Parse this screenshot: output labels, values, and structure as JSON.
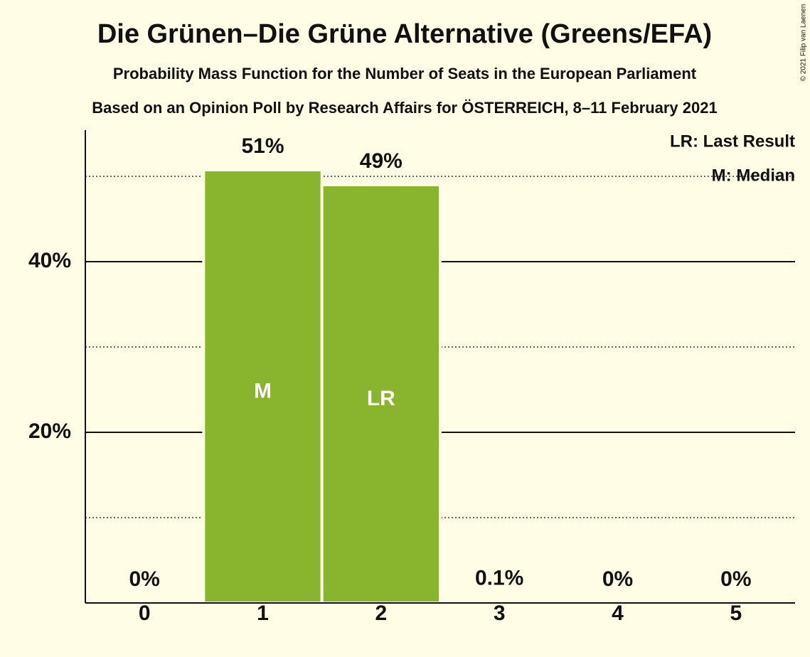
{
  "chart_data": {
    "type": "bar",
    "title": "Die Grünen–Die Grüne Alternative (Greens/EFA)",
    "subtitle": "Probability Mass Function for the Number of Seats in the European Parliament",
    "source_line": "Based on an Opinion Poll by Research Affairs for ÖSTERREICH, 8–11 February 2021",
    "copyright": "© 2021 Filip van Laenen",
    "categories": [
      "0",
      "1",
      "2",
      "3",
      "4",
      "5"
    ],
    "values": [
      0,
      50.75,
      49,
      0.1,
      0,
      0
    ],
    "value_labels": [
      "0%",
      "51%",
      "49%",
      "0.1%",
      "0%",
      "0%"
    ],
    "bar_labels": [
      null,
      "M",
      "LR",
      null,
      null,
      null
    ],
    "legend_texts": [
      "LR: Last Result",
      "M: Median"
    ],
    "color": "#88b52d",
    "ylim": [
      0,
      55
    ],
    "yticks": [
      {
        "value": 20,
        "label": "20%"
      },
      {
        "value": 40,
        "label": "40%"
      }
    ],
    "minor_yticks": [
      10,
      30,
      50
    ],
    "grid": true
  }
}
